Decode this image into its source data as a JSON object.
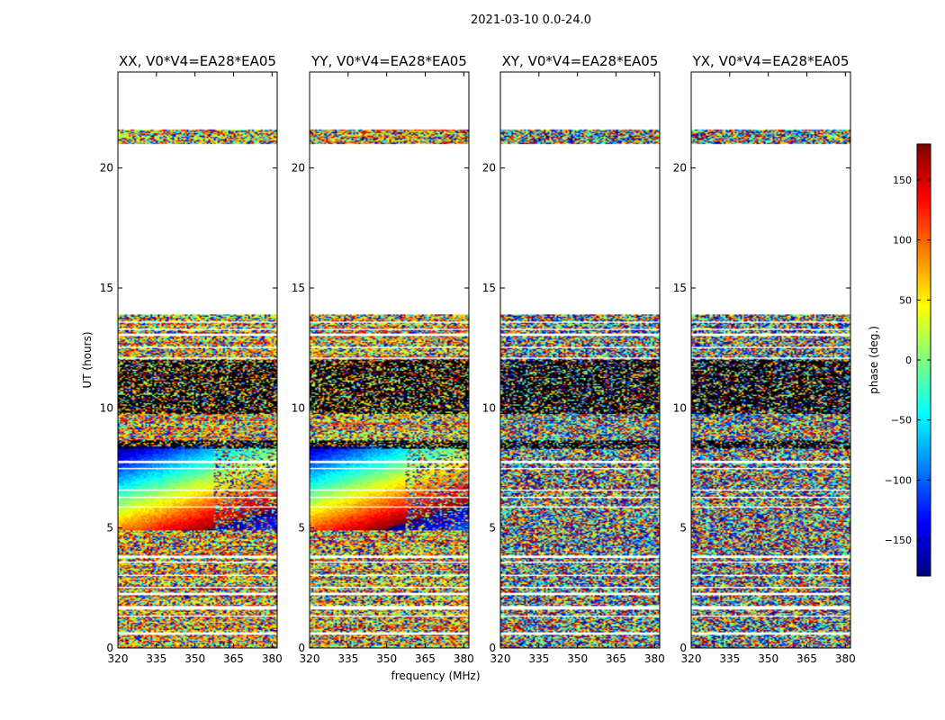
{
  "figure": {
    "suptitle": "2021-03-10 0.0-24.0",
    "xlabel": "frequency (MHz)",
    "ylabel": "UT (hours)"
  },
  "colorbar": {
    "label": "phase (deg.)",
    "range": [
      -180,
      180
    ],
    "ticks": [
      -150,
      -100,
      -50,
      0,
      50,
      100,
      150
    ],
    "tick_labels": [
      "−150",
      "−100",
      "−50",
      "0",
      "50",
      "100",
      "150"
    ],
    "colormap": "jet",
    "colors": [
      "#00007f",
      "#0000ff",
      "#007fff",
      "#00ffff",
      "#7fff7f",
      "#ffff00",
      "#ff7f00",
      "#ff0000",
      "#7f0000"
    ]
  },
  "chart_data": {
    "type": "heatmap",
    "xlim": [
      320,
      382
    ],
    "ylim": [
      0,
      24
    ],
    "xticks": [
      320,
      335,
      350,
      365,
      380
    ],
    "yticks": [
      0,
      5,
      10,
      15,
      20
    ],
    "value": "phase (deg.)",
    "panels": [
      {
        "title": "XX, V0*V4=EA28*EA05",
        "pol": "XX",
        "coherent_hours": [
          4.9,
          8.4
        ]
      },
      {
        "title": "YY, V0*V4=EA28*EA05",
        "pol": "YY",
        "coherent_hours": [
          4.9,
          8.4
        ]
      },
      {
        "title": "XY, V0*V4=EA28*EA05",
        "pol": "XY",
        "coherent_hours": []
      },
      {
        "title": "YX, V0*V4=EA28*EA05",
        "pol": "YX",
        "coherent_hours": []
      }
    ],
    "data_present_hours": [
      [
        0.0,
        13.9
      ],
      [
        21.0,
        21.6
      ]
    ],
    "flagged_gaps_hours": [
      [
        0.55,
        0.65
      ],
      [
        1.3,
        1.35
      ],
      [
        1.6,
        1.75
      ],
      [
        2.2,
        2.3
      ],
      [
        2.5,
        2.55
      ],
      [
        3.0,
        3.05
      ],
      [
        3.55,
        3.6
      ],
      [
        3.75,
        3.85
      ],
      [
        5.85,
        5.9
      ],
      [
        6.25,
        6.3
      ],
      [
        6.55,
        6.6
      ],
      [
        7.45,
        7.5
      ],
      [
        7.7,
        7.8
      ],
      [
        12.05,
        12.1
      ],
      [
        12.5,
        12.55
      ],
      [
        13.0,
        13.1
      ],
      [
        13.25,
        13.3
      ],
      [
        13.55,
        13.6
      ]
    ],
    "dense_black_hours": [
      [
        8.3,
        8.65
      ],
      [
        9.75,
        12.0
      ]
    ]
  }
}
